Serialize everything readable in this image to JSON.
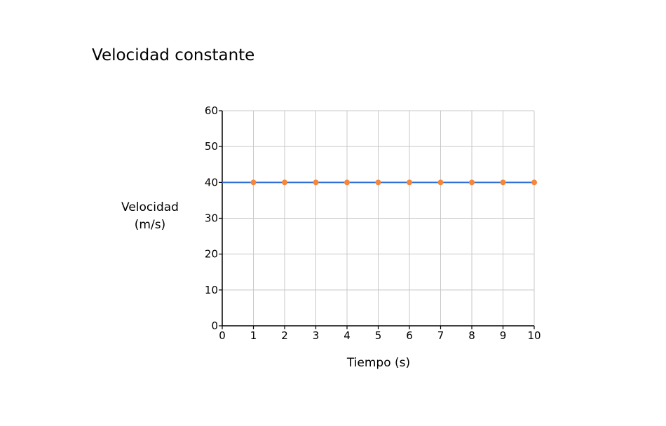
{
  "chart_data": {
    "type": "line",
    "title": "Velocidad constante",
    "xlabel": "Tiempo (s)",
    "ylabel_line1": "Velocidad",
    "ylabel_line2": "(m/s)",
    "xlim": [
      0,
      10
    ],
    "ylim": [
      0,
      60
    ],
    "xticks": [
      0,
      1,
      2,
      3,
      4,
      5,
      6,
      7,
      8,
      9,
      10
    ],
    "yticks": [
      0,
      10,
      20,
      30,
      40,
      50,
      60
    ],
    "grid": true,
    "series": [
      {
        "x": [
          0,
          1,
          2,
          3,
          4,
          5,
          6,
          7,
          8,
          9,
          10
        ],
        "y": [
          40,
          40,
          40,
          40,
          40,
          40,
          40,
          40,
          40,
          40,
          40
        ],
        "marker_x": [
          1,
          2,
          3,
          4,
          5,
          6,
          7,
          8,
          9,
          10
        ],
        "marker_y": [
          40,
          40,
          40,
          40,
          40,
          40,
          40,
          40,
          40,
          40
        ],
        "line_color": "#2f6fd8",
        "marker_color": "#f5863a"
      }
    ]
  }
}
